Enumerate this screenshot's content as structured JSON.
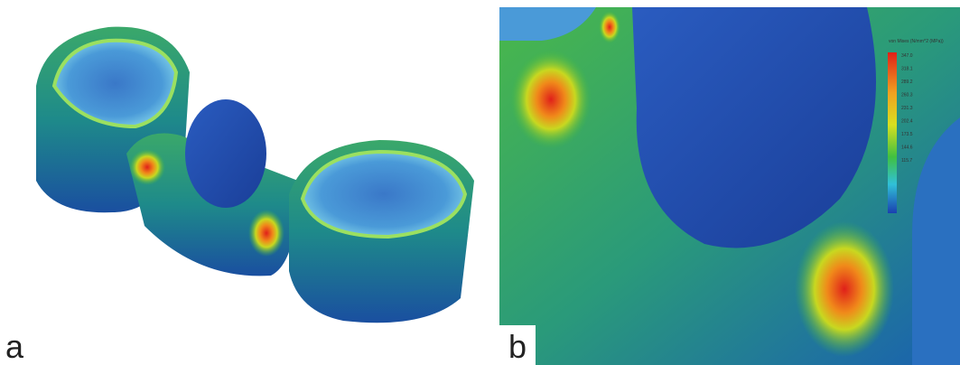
{
  "panels": [
    {
      "label": "a"
    },
    {
      "label": "b",
      "legend": {
        "title": "von Mises (N/mm^2 (MPa))",
        "ticks": [
          "347.0",
          "318.1",
          "289.2",
          "260.3",
          "231.3",
          "202.4",
          "173.5",
          "144.6",
          "115.7"
        ]
      }
    }
  ]
}
